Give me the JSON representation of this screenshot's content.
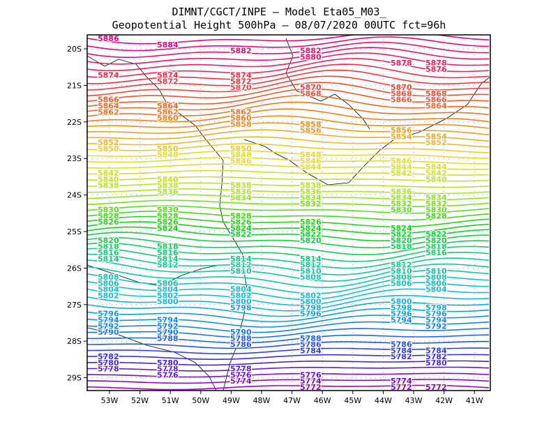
{
  "title_line1": "DIMNT/CGCT/INPE —  Model Eta05_M03_",
  "title_line2": "Geopotential Height 500hPa —  08/07/2020 00UTC fct=96h",
  "lon_labels": [
    "53W",
    "52W",
    "51W",
    "50W",
    "49W",
    "48W",
    "47W",
    "46W",
    "45W",
    "44W",
    "43W",
    "42W",
    "41W"
  ],
  "lat_labels": [
    "20S",
    "21S",
    "22S",
    "23S",
    "24S",
    "25S",
    "26S",
    "27S",
    "28S",
    "29S"
  ],
  "contour_min": 5772,
  "contour_max": 5886,
  "contour_step": 2,
  "contour_labels": [
    {
      "text": "5874"
    },
    {
      "text": "5882"
    },
    {
      "text": "5886"
    },
    {
      "text": "5884"
    },
    {
      "text": "5878"
    },
    {
      "text": "5870"
    },
    {
      "text": "5868"
    },
    {
      "text": "5866"
    },
    {
      "text": "5864"
    },
    {
      "text": "5862"
    },
    {
      "text": "5882"
    },
    {
      "text": "5880"
    },
    {
      "text": "5878"
    },
    {
      "text": "5876"
    },
    {
      "text": "5874"
    },
    {
      "text": "5872"
    },
    {
      "text": "5870"
    },
    {
      "text": "5868"
    },
    {
      "text": "5866"
    },
    {
      "text": "5864"
    },
    {
      "text": "5862"
    },
    {
      "text": "5860"
    },
    {
      "text": "5858"
    },
    {
      "text": "5856"
    },
    {
      "text": "5854"
    },
    {
      "text": "5852"
    },
    {
      "text": "5850"
    },
    {
      "text": "5848"
    },
    {
      "text": "5846"
    },
    {
      "text": "5844"
    },
    {
      "text": "5842"
    },
    {
      "text": "5850"
    },
    {
      "text": "5848"
    },
    {
      "text": "5846"
    },
    {
      "text": "5844"
    },
    {
      "text": "5842"
    },
    {
      "text": "5840"
    },
    {
      "text": "5838"
    },
    {
      "text": "5836"
    },
    {
      "text": "5834"
    },
    {
      "text": "5840"
    },
    {
      "text": "5838"
    },
    {
      "text": "5836"
    },
    {
      "text": "5834"
    },
    {
      "text": "5832"
    },
    {
      "text": "5830"
    },
    {
      "text": "5828"
    },
    {
      "text": "5838"
    },
    {
      "text": "5836"
    },
    {
      "text": "5834"
    },
    {
      "text": "5832"
    },
    {
      "text": "5830"
    },
    {
      "text": "5828"
    },
    {
      "text": "5826"
    },
    {
      "text": "5824"
    },
    {
      "text": "5822"
    },
    {
      "text": "5820"
    },
    {
      "text": "5818"
    },
    {
      "text": "5830"
    },
    {
      "text": "5828"
    },
    {
      "text": "5826"
    },
    {
      "text": "5824"
    },
    {
      "text": "5822"
    },
    {
      "text": "5820"
    },
    {
      "text": "5818"
    },
    {
      "text": "5816"
    },
    {
      "text": "5814"
    },
    {
      "text": "5812"
    },
    {
      "text": "5810"
    },
    {
      "text": "5808"
    },
    {
      "text": "5806"
    },
    {
      "text": "5804"
    },
    {
      "text": "5802"
    },
    {
      "text": "5800"
    },
    {
      "text": "5798"
    },
    {
      "text": "5796"
    },
    {
      "text": "5794"
    },
    {
      "text": "5792"
    },
    {
      "text": "5790"
    },
    {
      "text": "5788"
    },
    {
      "text": "5786"
    },
    {
      "text": "5784"
    },
    {
      "text": "5782"
    },
    {
      "text": "5780"
    },
    {
      "text": "5778"
    },
    {
      "text": "5776"
    },
    {
      "text": "5774"
    },
    {
      "text": "5772"
    },
    {
      "text": "5826"
    },
    {
      "text": "5824"
    },
    {
      "text": "5822"
    },
    {
      "text": "5820"
    },
    {
      "text": "5818"
    },
    {
      "text": "5816"
    },
    {
      "text": "5814"
    },
    {
      "text": "5812"
    },
    {
      "text": "5810"
    },
    {
      "text": "5808"
    },
    {
      "text": "5806"
    },
    {
      "text": "5804"
    },
    {
      "text": "5802"
    },
    {
      "text": "5800"
    },
    {
      "text": "5798"
    },
    {
      "text": "5796"
    },
    {
      "text": "5794"
    },
    {
      "text": "5792"
    },
    {
      "text": "5790"
    },
    {
      "text": "5788"
    },
    {
      "text": "5786"
    },
    {
      "text": "5784"
    },
    {
      "text": "5782"
    },
    {
      "text": "5780"
    },
    {
      "text": "5778"
    },
    {
      "text": "5776"
    },
    {
      "text": "5774"
    },
    {
      "text": "5772"
    },
    {
      "text": "5814"
    },
    {
      "text": "5812"
    },
    {
      "text": "5810"
    },
    {
      "text": "5808"
    },
    {
      "text": "5806"
    },
    {
      "text": "5804"
    },
    {
      "text": "5802"
    },
    {
      "text": "5800"
    },
    {
      "text": "5798"
    },
    {
      "text": "5796"
    },
    {
      "text": "5794"
    },
    {
      "text": "5874"
    },
    {
      "text": "5872"
    },
    {
      "text": "5870"
    },
    {
      "text": "5868"
    },
    {
      "text": "5866"
    },
    {
      "text": "5864"
    },
    {
      "text": "5862"
    },
    {
      "text": "5860"
    },
    {
      "text": "5858"
    },
    {
      "text": "5856"
    },
    {
      "text": "5854"
    },
    {
      "text": "5852"
    },
    {
      "text": "5850"
    },
    {
      "text": "5848"
    },
    {
      "text": "5846"
    },
    {
      "text": "5844"
    },
    {
      "text": "5842"
    },
    {
      "text": "5840"
    },
    {
      "text": "5838"
    },
    {
      "text": "5836"
    },
    {
      "text": "5834"
    },
    {
      "text": "5832"
    },
    {
      "text": "5830"
    },
    {
      "text": "5828"
    },
    {
      "text": "5826"
    },
    {
      "text": "5824"
    },
    {
      "text": "5822"
    },
    {
      "text": "5820"
    },
    {
      "text": "5818"
    },
    {
      "text": "5816"
    },
    {
      "text": "5814"
    },
    {
      "text": "5812"
    },
    {
      "text": "5810"
    },
    {
      "text": "5808"
    },
    {
      "text": "5806"
    },
    {
      "text": "5804"
    },
    {
      "text": "5802"
    },
    {
      "text": "5800"
    },
    {
      "text": "5798"
    },
    {
      "text": "5796"
    },
    {
      "text": "5794"
    },
    {
      "text": "5792"
    },
    {
      "text": "5790"
    },
    {
      "text": "5788"
    },
    {
      "text": "5786"
    },
    {
      "text": "5784"
    },
    {
      "text": "5782"
    },
    {
      "text": "5780"
    },
    {
      "text": "5778"
    },
    {
      "text": "5776"
    },
    {
      "text": "5774"
    },
    {
      "text": "5772"
    }
  ]
}
